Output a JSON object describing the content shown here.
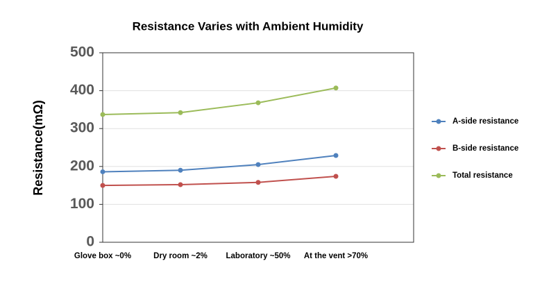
{
  "chart_data": {
    "type": "line",
    "title": "Resistance Varies with Ambient Humidity",
    "y_label": "Resistance(mΩ)",
    "categories": [
      "Glove box ~0%",
      "Dry room ~2%",
      "Laboratory ~50%",
      "At the vent >70%"
    ],
    "series": [
      {
        "name": "A-side resistance",
        "color": "#4f81bd",
        "values": [
          186,
          190,
          205,
          229
        ]
      },
      {
        "name": "B-side resistance",
        "color": "#c0504d",
        "values": [
          150,
          152,
          158,
          174
        ]
      },
      {
        "name": "Total resistance",
        "color": "#9bbb59",
        "values": [
          337,
          342,
          368,
          407
        ]
      }
    ],
    "ylim": [
      0,
      500
    ],
    "yticks": [
      0,
      100,
      200,
      300,
      400,
      500
    ],
    "grid": true,
    "legend": "right"
  }
}
